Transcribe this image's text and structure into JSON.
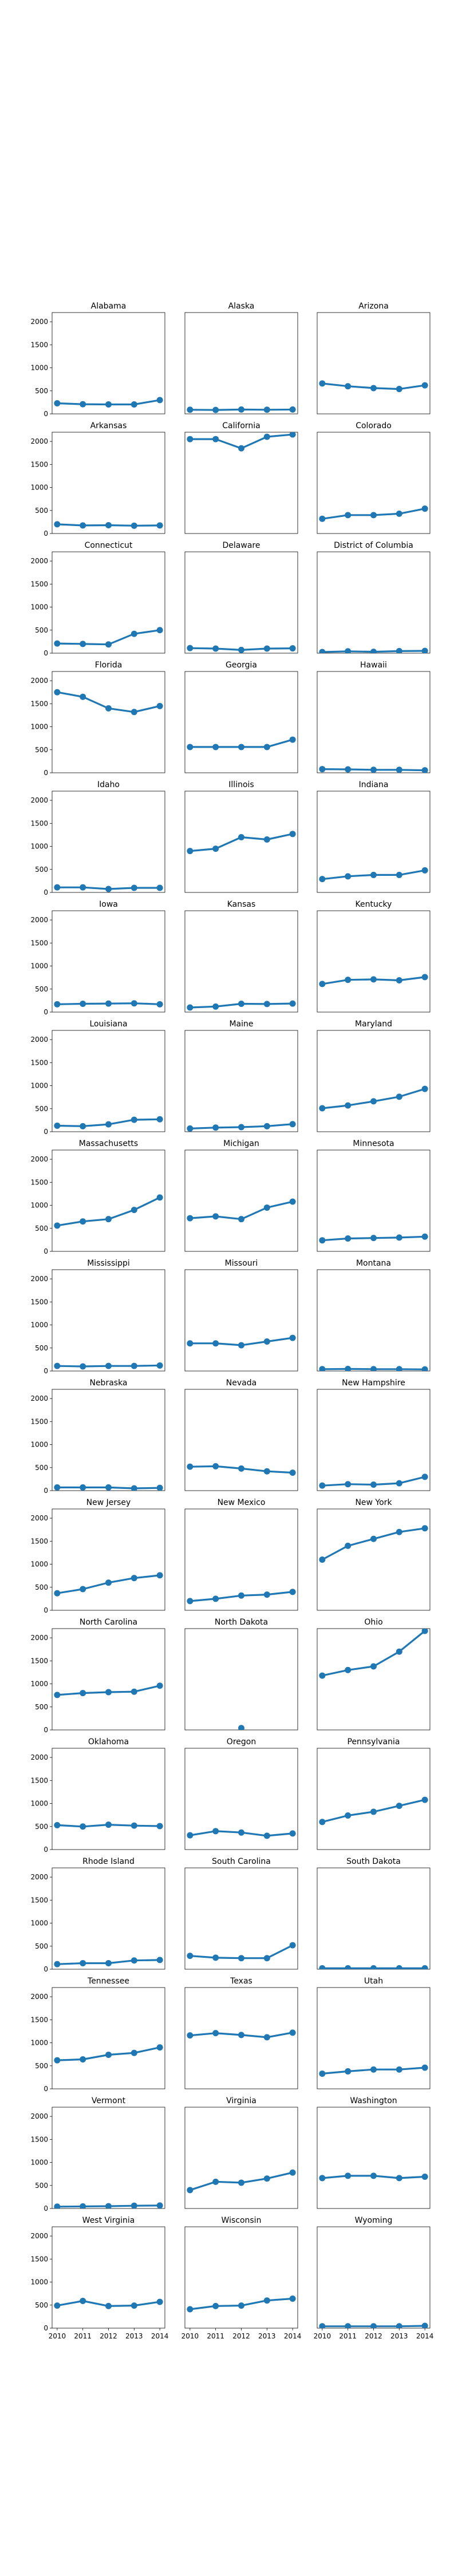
{
  "chart_data": {
    "type": "line",
    "layout": "small-multiples",
    "x": [
      2010,
      2011,
      2012,
      2013,
      2014
    ],
    "xticklabels": [
      "2010",
      "2011",
      "2012",
      "2013",
      "2014"
    ],
    "ylim": [
      0,
      2200
    ],
    "yticks": [
      0,
      500,
      1000,
      1500,
      2000
    ],
    "grid": false,
    "color": "#1f77b4",
    "series": [
      {
        "name": "Alabama",
        "values": [
          230,
          210,
          205,
          205,
          300
        ]
      },
      {
        "name": "Alaska",
        "values": [
          90,
          85,
          95,
          90,
          95
        ]
      },
      {
        "name": "Arizona",
        "values": [
          660,
          600,
          560,
          540,
          620
        ]
      },
      {
        "name": "Arkansas",
        "values": [
          200,
          175,
          180,
          170,
          175
        ]
      },
      {
        "name": "California",
        "values": [
          2050,
          2050,
          1850,
          2100,
          2150
        ]
      },
      {
        "name": "Colorado",
        "values": [
          320,
          400,
          400,
          430,
          540
        ]
      },
      {
        "name": "Connecticut",
        "values": [
          210,
          200,
          190,
          420,
          500
        ]
      },
      {
        "name": "Delaware",
        "values": [
          110,
          100,
          70,
          100,
          105
        ]
      },
      {
        "name": "District of Columbia",
        "values": [
          25,
          40,
          30,
          45,
          50
        ]
      },
      {
        "name": "Florida",
        "values": [
          1750,
          1650,
          1400,
          1320,
          1450
        ]
      },
      {
        "name": "Georgia",
        "values": [
          560,
          560,
          560,
          560,
          720
        ]
      },
      {
        "name": "Hawaii",
        "values": [
          80,
          75,
          65,
          65,
          55
        ]
      },
      {
        "name": "Idaho",
        "values": [
          110,
          110,
          75,
          100,
          100
        ]
      },
      {
        "name": "Illinois",
        "values": [
          900,
          950,
          1200,
          1150,
          1270
        ]
      },
      {
        "name": "Indiana",
        "values": [
          290,
          350,
          380,
          380,
          480
        ]
      },
      {
        "name": "Iowa",
        "values": [
          170,
          180,
          185,
          190,
          170
        ]
      },
      {
        "name": "Kansas",
        "values": [
          100,
          120,
          180,
          175,
          185
        ]
      },
      {
        "name": "Kentucky",
        "values": [
          610,
          700,
          710,
          690,
          760
        ]
      },
      {
        "name": "Louisiana",
        "values": [
          130,
          120,
          160,
          260,
          270
        ]
      },
      {
        "name": "Maine",
        "values": [
          70,
          90,
          100,
          120,
          165
        ]
      },
      {
        "name": "Maryland",
        "values": [
          510,
          570,
          660,
          760,
          930
        ]
      },
      {
        "name": "Massachusetts",
        "values": [
          560,
          650,
          700,
          900,
          1170
        ]
      },
      {
        "name": "Michigan",
        "values": [
          720,
          760,
          700,
          950,
          1080
        ]
      },
      {
        "name": "Minnesota",
        "values": [
          240,
          280,
          290,
          300,
          320
        ]
      },
      {
        "name": "Mississippi",
        "values": [
          110,
          100,
          110,
          110,
          120
        ]
      },
      {
        "name": "Missouri",
        "values": [
          600,
          600,
          560,
          640,
          720
        ]
      },
      {
        "name": "Montana",
        "values": [
          40,
          45,
          40,
          40,
          35
        ]
      },
      {
        "name": "Nebraska",
        "values": [
          70,
          70,
          70,
          50,
          60
        ]
      },
      {
        "name": "Nevada",
        "values": [
          520,
          530,
          480,
          420,
          390
        ]
      },
      {
        "name": "New Hampshire",
        "values": [
          110,
          140,
          130,
          160,
          300
        ]
      },
      {
        "name": "New Jersey",
        "values": [
          370,
          460,
          600,
          700,
          760
        ]
      },
      {
        "name": "New Mexico",
        "values": [
          200,
          250,
          320,
          340,
          400
        ]
      },
      {
        "name": "New York",
        "values": [
          1100,
          1400,
          1550,
          1700,
          1780
        ]
      },
      {
        "name": "North Carolina",
        "values": [
          760,
          800,
          820,
          830,
          960
        ]
      },
      {
        "name": "North Dakota",
        "values": [
          null,
          null,
          40,
          null,
          null
        ]
      },
      {
        "name": "Ohio",
        "values": [
          1180,
          1300,
          1380,
          1700,
          2150
        ]
      },
      {
        "name": "Oklahoma",
        "values": [
          530,
          500,
          540,
          520,
          510
        ]
      },
      {
        "name": "Oregon",
        "values": [
          310,
          400,
          370,
          300,
          350
        ]
      },
      {
        "name": "Pennsylvania",
        "values": [
          600,
          740,
          820,
          950,
          1080
        ]
      },
      {
        "name": "Rhode Island",
        "values": [
          110,
          130,
          130,
          190,
          200
        ]
      },
      {
        "name": "South Carolina",
        "values": [
          290,
          250,
          240,
          240,
          520
        ]
      },
      {
        "name": "South Dakota",
        "values": [
          20,
          20,
          20,
          20,
          20
        ]
      },
      {
        "name": "Tennessee",
        "values": [
          620,
          640,
          740,
          780,
          900
        ]
      },
      {
        "name": "Texas",
        "values": [
          1160,
          1210,
          1170,
          1120,
          1220
        ]
      },
      {
        "name": "Utah",
        "values": [
          330,
          380,
          420,
          420,
          460
        ]
      },
      {
        "name": "Vermont",
        "values": [
          40,
          45,
          50,
          60,
          65
        ]
      },
      {
        "name": "Virginia",
        "values": [
          400,
          580,
          560,
          650,
          780
        ]
      },
      {
        "name": "Washington",
        "values": [
          660,
          710,
          710,
          660,
          690
        ]
      },
      {
        "name": "West Virginia",
        "values": [
          490,
          590,
          480,
          490,
          570
        ]
      },
      {
        "name": "Wisconsin",
        "values": [
          410,
          480,
          490,
          600,
          640
        ]
      },
      {
        "name": "Wyoming",
        "values": [
          40,
          40,
          40,
          40,
          50
        ]
      }
    ]
  }
}
